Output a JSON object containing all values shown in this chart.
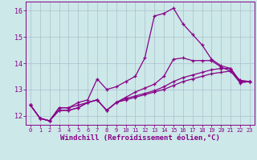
{
  "title": "",
  "xlabel": "Windchill (Refroidissement éolien,°C)",
  "xlabel_fontsize": 6.5,
  "background_color": "#cce8e8",
  "line_color": "#880088",
  "grid_color": "#aabbcc",
  "ylim": [
    11.65,
    16.35
  ],
  "xlim": [
    -0.5,
    23.5
  ],
  "yticks": [
    12,
    13,
    14,
    15,
    16
  ],
  "xticks": [
    0,
    1,
    2,
    3,
    4,
    5,
    6,
    7,
    8,
    9,
    10,
    11,
    12,
    13,
    14,
    15,
    16,
    17,
    18,
    19,
    20,
    21,
    22,
    23
  ],
  "series": [
    [
      12.4,
      11.9,
      11.8,
      12.3,
      12.3,
      12.5,
      12.6,
      13.4,
      13.0,
      13.1,
      13.3,
      13.5,
      14.2,
      15.8,
      15.9,
      16.1,
      15.5,
      15.1,
      14.7,
      14.15,
      13.9,
      13.8,
      13.3,
      13.3
    ],
    [
      12.4,
      11.9,
      11.8,
      12.3,
      12.3,
      12.4,
      12.5,
      12.6,
      12.2,
      12.5,
      12.7,
      12.9,
      13.05,
      13.2,
      13.5,
      14.15,
      14.2,
      14.1,
      14.1,
      14.1,
      13.85,
      13.7,
      13.35,
      13.3
    ],
    [
      12.4,
      11.9,
      11.8,
      12.2,
      12.2,
      12.3,
      12.5,
      12.6,
      12.2,
      12.5,
      12.65,
      12.75,
      12.85,
      12.95,
      13.1,
      13.3,
      13.45,
      13.55,
      13.65,
      13.75,
      13.8,
      13.8,
      13.3,
      13.3
    ],
    [
      12.4,
      11.9,
      11.8,
      12.2,
      12.2,
      12.3,
      12.5,
      12.6,
      12.2,
      12.5,
      12.6,
      12.7,
      12.8,
      12.9,
      13.0,
      13.15,
      13.3,
      13.4,
      13.5,
      13.6,
      13.65,
      13.7,
      13.25,
      13.3
    ]
  ]
}
